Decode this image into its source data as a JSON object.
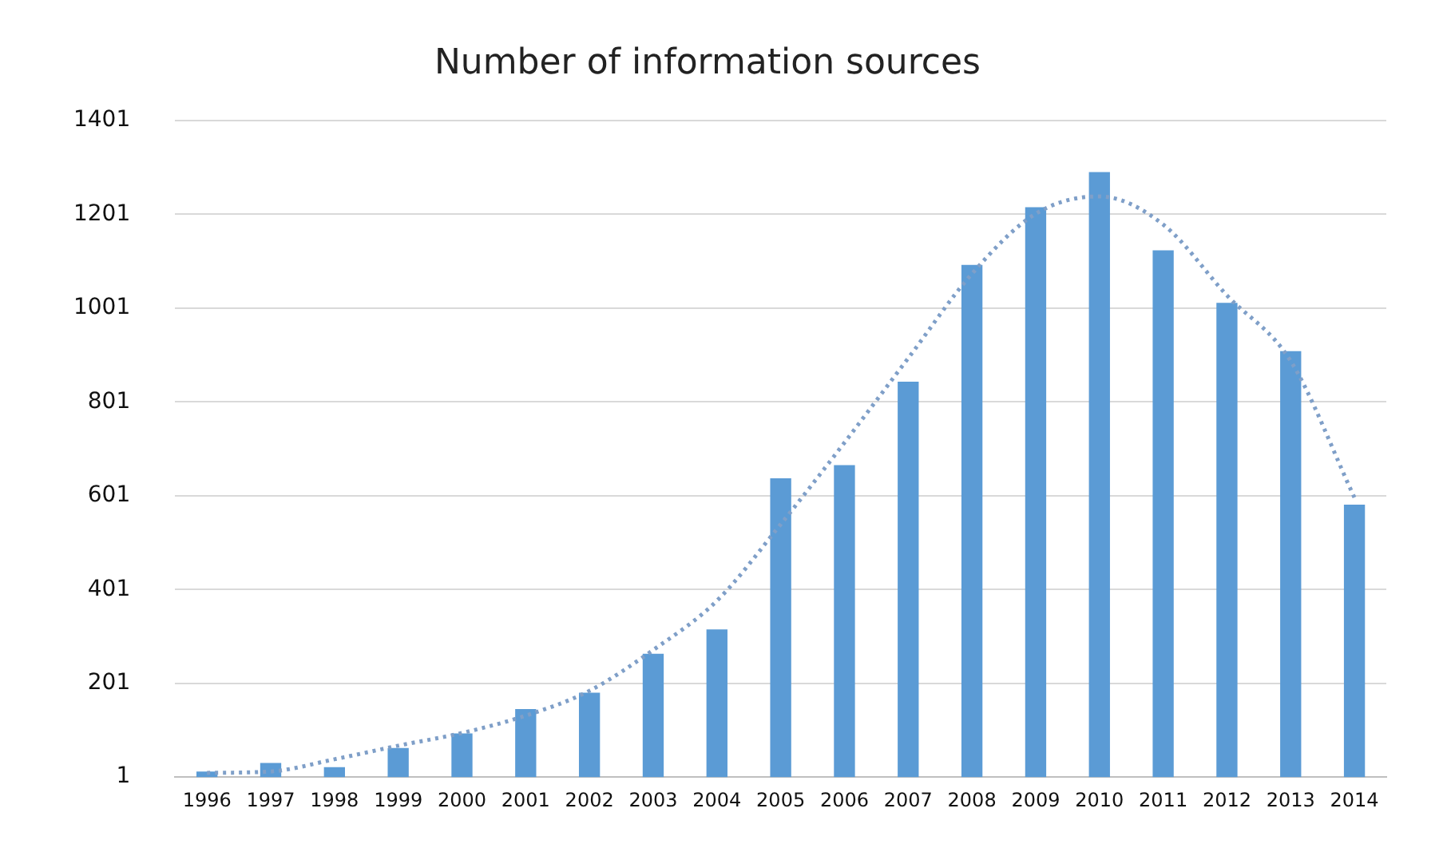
{
  "chart_data": {
    "type": "bar",
    "title": "Number of information sources",
    "categories": [
      "1996",
      "1997",
      "1998",
      "1999",
      "2000",
      "2001",
      "2002",
      "2003",
      "2004",
      "2005",
      "2006",
      "2007",
      "2008",
      "2009",
      "2010",
      "2011",
      "2012",
      "2013",
      "2014"
    ],
    "series": [
      {
        "color": "#5b9bd5",
        "values": [
          13,
          31,
          22,
          63,
          94,
          146,
          181,
          264,
          316,
          638,
          666,
          844,
          1093,
          1216,
          1291,
          1124,
          1012,
          909,
          582
        ]
      },
      {
        "type": "line",
        "color": "#7f9fc8",
        "line_style": "dotted",
        "marker": "none",
        "values": [
          10,
          13,
          39,
          68,
          95,
          132,
          185,
          272,
          377,
          540,
          714,
          894,
          1074,
          1202,
          1239,
          1179,
          1028,
          888,
          597
        ]
      }
    ],
    "ylim": [
      1,
      1401
    ],
    "yticks": [
      1,
      201,
      401,
      601,
      801,
      1001,
      1201,
      1401
    ],
    "grid": "y",
    "legend": false
  }
}
